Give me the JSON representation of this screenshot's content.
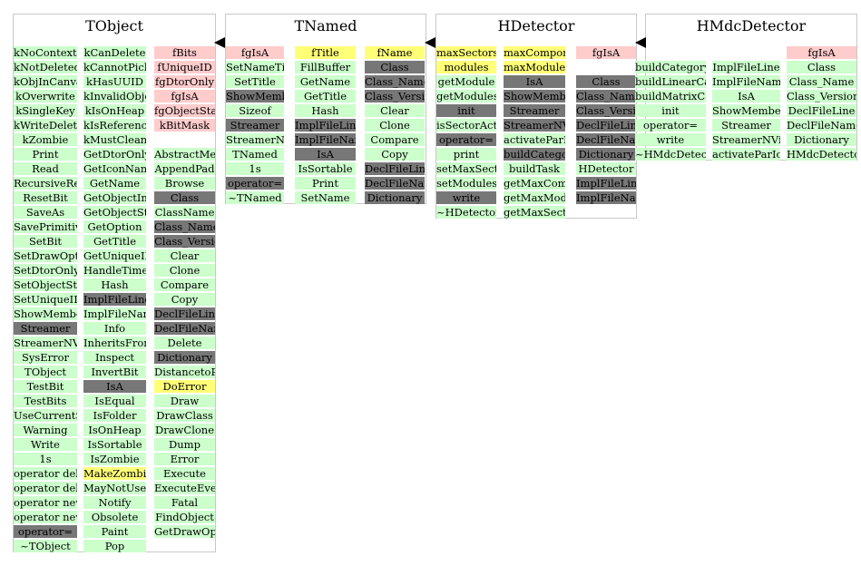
{
  "classes": [
    {
      "name": "TObject",
      "columns": [
        [
          "kNoContextMenu",
          "kNotDeleted",
          "kObjInCanvas",
          "kOverwrite",
          "kSingleKey",
          "kWriteDelete",
          "kZombie",
          "Print",
          "Read",
          "RecursiveRemove",
          "ResetBit",
          "SaveAs",
          "SavePrimitive",
          "SetBit",
          "SetDrawOption",
          "SetDtorOnly",
          "SetObjectStat",
          "SetUniqueID",
          "ShowMembers",
          "Streamer",
          "StreamerNVirtual",
          "SysError",
          "TObject",
          "TestBit",
          "TestBits",
          "UseCurrentStyle",
          "Warning",
          "Write",
          "1s",
          "operator delete",
          "operator delete[]",
          "operator new",
          "operator new[]",
          "operator=",
          "~TObject"
        ],
        [
          "kCanDelete",
          "kCannotPick",
          "kHasUUID",
          "kInvalidObject",
          "kIsOnHeap",
          "kIsReferenced",
          "kMustCleanup",
          "GetDtorOnly",
          "GetIconName",
          "GetName",
          "GetObjectInfo",
          "GetObjectStat",
          "GetOption",
          "GetTitle",
          "GetUniqueID",
          "HandleTimer",
          "Hash",
          "ImplFileLine",
          "ImplFileName",
          "Info",
          "InheritsFrom",
          "Inspect",
          "InvertBit",
          "IsA",
          "IsEqual",
          "IsFolder",
          "IsOnHeap",
          "IsSortable",
          "IsZombie",
          "MakeZombie",
          "MayNotUse",
          "Notify",
          "Obsolete",
          "Paint",
          "Pop"
        ],
        [
          "fBits",
          "fUniqueID",
          "fgDtorOnly",
          "fgIsA",
          "fgObjectStat",
          "kBitMask",
          "",
          "AbstractMethod",
          "AppendPad",
          "Browse",
          "Class",
          "ClassName",
          "Class_Name",
          "Class_Version",
          "Clear",
          "Clone",
          "Compare",
          "Copy",
          "DeclFileLine",
          "DeclFileName",
          "Delete",
          "Dictionary",
          "DistancetoPrimitive",
          "DoError",
          "Draw",
          "DrawClass",
          "DrawClone",
          "Dump",
          "Error",
          "Execute",
          "ExecuteEvent",
          "Fatal",
          "FindObject",
          "GetDrawOption"
        ]
      ],
      "styles": [
        [
          "n",
          "n",
          "n",
          "n",
          "n",
          "n",
          "n",
          "n",
          "n",
          "n",
          "n",
          "n",
          "n",
          "n",
          "n",
          "n",
          "n",
          "n",
          "n",
          "d",
          "n",
          "n",
          "n",
          "n",
          "n",
          "n",
          "n",
          "n",
          "n",
          "n",
          "n",
          "n",
          "n",
          "d",
          "n"
        ],
        [
          "n",
          "n",
          "n",
          "n",
          "n",
          "n",
          "n",
          "n",
          "n",
          "n",
          "n",
          "n",
          "n",
          "n",
          "n",
          "n",
          "n",
          "d",
          "n",
          "n",
          "n",
          "n",
          "n",
          "d",
          "n",
          "n",
          "n",
          "n",
          "n",
          "y",
          "n",
          "n",
          "n",
          "n",
          "n"
        ],
        [
          "r",
          "r",
          "r",
          "r",
          "r",
          "r",
          "e",
          "n",
          "n",
          "n",
          "d",
          "n",
          "d",
          "d",
          "n",
          "n",
          "n",
          "n",
          "d",
          "d",
          "n",
          "d",
          "n",
          "y",
          "n",
          "n",
          "n",
          "n",
          "n",
          "n",
          "n",
          "n",
          "n",
          "n"
        ]
      ]
    },
    {
      "name": "TNamed",
      "columns": [
        [
          "fgIsA",
          "SetNameTitle",
          "SetTitle",
          "ShowMembers",
          "Sizeof",
          "Streamer",
          "StreamerNVirtual",
          "TNamed",
          "1s",
          "operator=",
          "~TNamed"
        ],
        [
          "fTitle",
          "FillBuffer",
          "GetName",
          "GetTitle",
          "Hash",
          "ImplFileLine",
          "ImplFileName",
          "IsA",
          "IsSortable",
          "Print",
          "SetName"
        ],
        [
          "fName",
          "Class",
          "Class_Name",
          "Class_Version",
          "Clear",
          "Clone",
          "Compare",
          "Copy",
          "DeclFileLine",
          "DeclFileName",
          "Dictionary"
        ]
      ],
      "styles": [
        [
          "r",
          "n",
          "n",
          "d",
          "n",
          "d",
          "n",
          "n",
          "n",
          "d",
          "n"
        ],
        [
          "y",
          "n",
          "n",
          "n",
          "n",
          "d",
          "d",
          "d",
          "n",
          "n",
          "n"
        ],
        [
          "y",
          "d",
          "d",
          "d",
          "n",
          "n",
          "n",
          "n",
          "d",
          "d",
          "d"
        ]
      ]
    },
    {
      "name": "HDetector",
      "columns": [
        [
          "maxSectors",
          "modules",
          "getModule",
          "getModules",
          "init",
          "isSectorActive",
          "operator=",
          "print",
          "setMaxSectors",
          "setModules",
          "write",
          "~HDetector"
        ],
        [
          "maxComponents",
          "maxModules",
          "IsA",
          "ShowMembers",
          "Streamer",
          "StreamerNVirtual",
          "activateParIo",
          "buildCategory",
          "buildTask",
          "getMaxComponents",
          "getMaxModules",
          "getMaxSectors"
        ],
        [
          "fgIsA",
          "",
          "Class",
          "Class_Name",
          "Class_Version",
          "DeclFileLine",
          "DeclFileName",
          "Dictionary",
          "HDetector",
          "ImplFileLine",
          "ImplFileName"
        ]
      ],
      "styles": [
        [
          "y",
          "y",
          "n",
          "n",
          "d",
          "n",
          "d",
          "n",
          "n",
          "n",
          "d",
          "n"
        ],
        [
          "y",
          "y",
          "d",
          "d",
          "d",
          "d",
          "n",
          "d",
          "n",
          "n",
          "n",
          "n"
        ],
        [
          "r",
          "e",
          "d",
          "d",
          "d",
          "d",
          "d",
          "d",
          "n",
          "d",
          "d"
        ]
      ]
    },
    {
      "name": "HMdcDetector",
      "columns": [
        [
          "buildCategory",
          "buildLinearCategory",
          "buildMatrixCategory",
          "init",
          "operator=",
          "write",
          "~HMdcDetector"
        ],
        [
          "ImplFileLine",
          "ImplFileName",
          "IsA",
          "ShowMembers",
          "Streamer",
          "StreamerNVirtual",
          "activateParIo"
        ],
        [
          "fgIsA",
          "Class",
          "Class_Name",
          "Class_Version",
          "DeclFileLine",
          "DeclFileName",
          "Dictionary",
          "HMdcDetector"
        ]
      ],
      "styles": [
        [
          "n",
          "n",
          "n",
          "n",
          "n",
          "n",
          "n"
        ],
        [
          "n",
          "n",
          "n",
          "n",
          "n",
          "n",
          "n"
        ],
        [
          "r",
          "n",
          "n",
          "n",
          "n",
          "n",
          "n",
          "n"
        ]
      ]
    }
  ],
  "colors": {
    "normal": "#ccffcc",
    "dark": "#777777",
    "highlight": "#ffff77",
    "member": "#ffcccc",
    "border": "#c8c8c8"
  }
}
